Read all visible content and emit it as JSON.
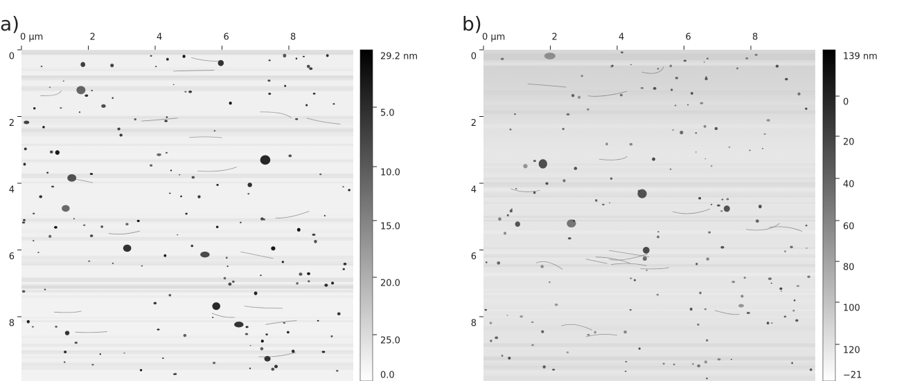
{
  "panels": [
    {
      "label": "a)",
      "x_ticks": [
        "0 µm",
        "2",
        "4",
        "6",
        "8"
      ],
      "y_ticks": [
        "0",
        "2",
        "4",
        "6",
        "8"
      ],
      "colorbar_labels": [
        "29.2 nm",
        "5.0",
        "10.0",
        "15.0",
        "20.0",
        "25.0",
        "0.0"
      ]
    },
    {
      "label": "b)",
      "x_ticks": [
        "0 µm",
        "2",
        "4",
        "6",
        "8"
      ],
      "y_ticks": [
        "0",
        "2",
        "4",
        "6",
        "8"
      ],
      "colorbar_labels": [
        "139 nm",
        "0",
        "20",
        "40",
        "60",
        "80",
        "100",
        "120",
        "−21"
      ]
    }
  ]
}
